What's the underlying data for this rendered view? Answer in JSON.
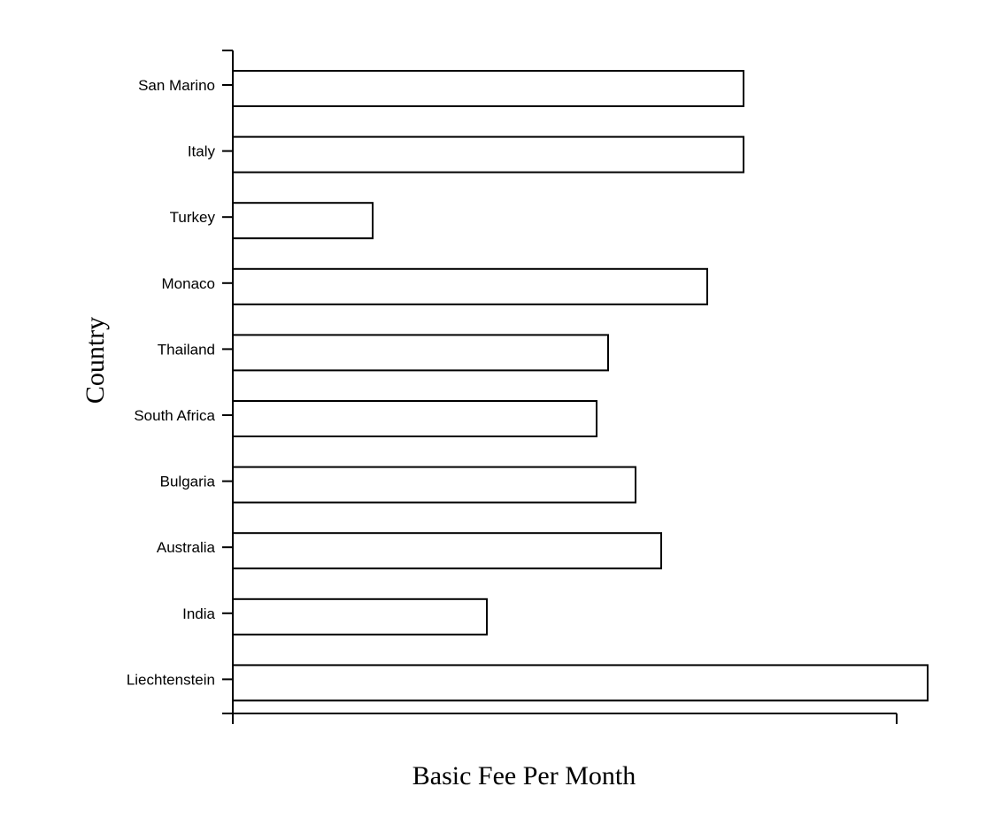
{
  "chart_data": {
    "type": "bar",
    "orientation": "horizontal",
    "categories": [
      "San Marino",
      "Italy",
      "Turkey",
      "Monaco",
      "Thailand",
      "South Africa",
      "Bulgaria",
      "Australia",
      "India",
      "Liechtenstein"
    ],
    "values": [
      57.7,
      57.7,
      15.8,
      53.6,
      42.4,
      41.1,
      45.5,
      48.4,
      28.7,
      78.5
    ],
    "title": "",
    "xlabel": "Basic Fee Per Month",
    "ylabel": "Country",
    "xlim": [
      0,
      75
    ],
    "x_tick_labels_shown": false,
    "grid": false,
    "legend": "none",
    "colors": {
      "bar_fill": "#ffffff",
      "bar_stroke": "#000000"
    }
  }
}
